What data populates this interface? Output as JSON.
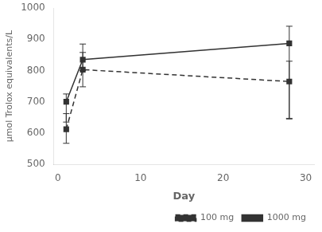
{
  "chart_data": {
    "type": "line",
    "xlabel": "Day",
    "ylabel": "μmol Trolox equivalents/L",
    "xlim": [
      -0.5,
      31
    ],
    "ylim": [
      500,
      1000
    ],
    "xticks": [
      0,
      10,
      20,
      30
    ],
    "yticks": [
      500,
      600,
      700,
      800,
      900,
      1000
    ],
    "grid": false,
    "legend": "lower right",
    "x": [
      1,
      3,
      28
    ],
    "series": [
      {
        "name": "100 mg",
        "color": "#333333",
        "line_style": "dashed",
        "marker": "square",
        "values": [
          612,
          803,
          765
        ],
        "error_lo": [
          45,
          55,
          120
        ],
        "error_hi": [
          50,
          55,
          65
        ]
      },
      {
        "name": "1000 mg",
        "color": "#333333",
        "line_style": "solid",
        "marker": "square",
        "values": [
          700,
          835,
          887
        ],
        "error_lo": [
          65,
          35,
          240
        ],
        "error_hi": [
          25,
          50,
          55
        ]
      }
    ]
  }
}
